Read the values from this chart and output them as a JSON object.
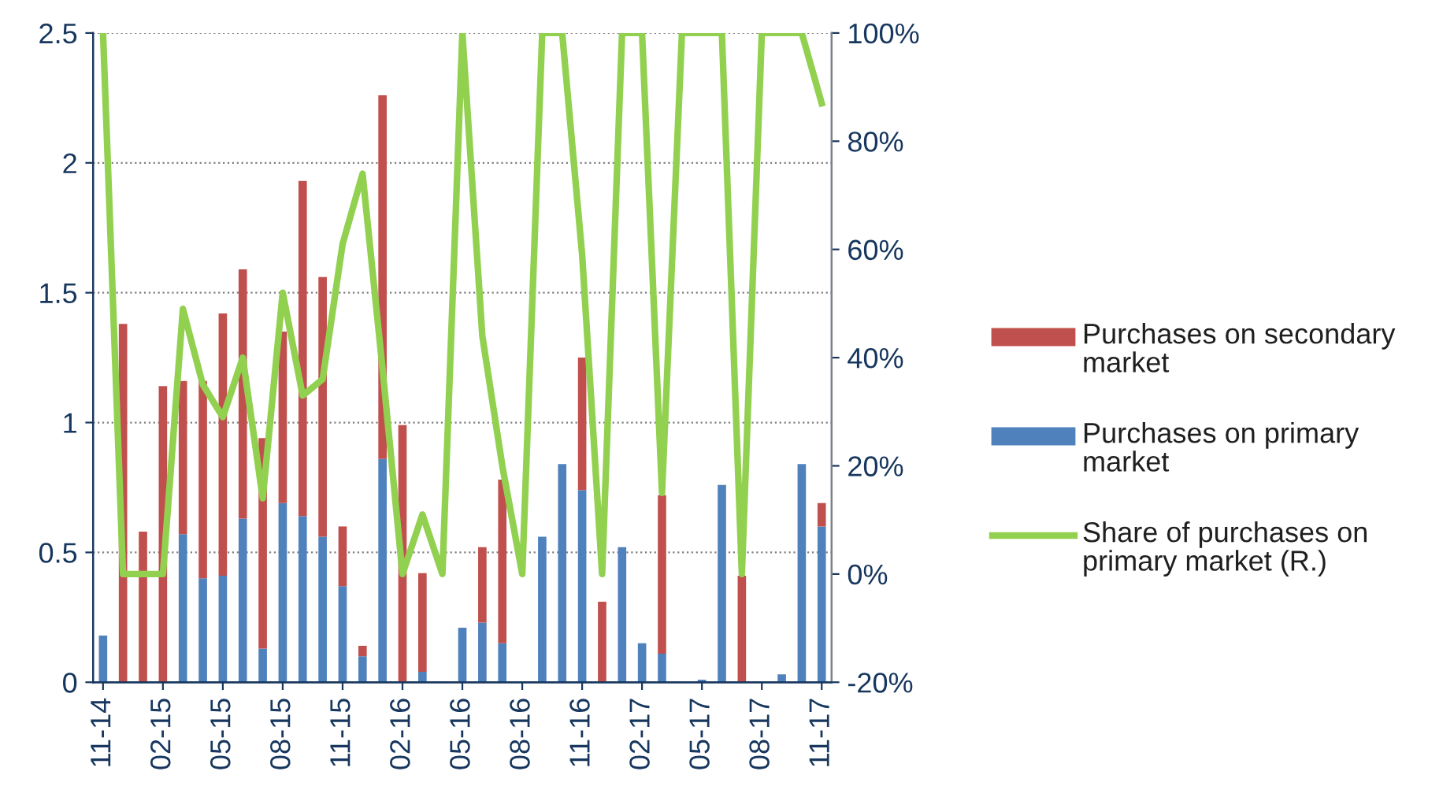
{
  "chart_data": {
    "type": "bar",
    "stacked": true,
    "categories": [
      "11-14",
      null,
      null,
      "02-15",
      null,
      null,
      "05-15",
      null,
      null,
      "08-15",
      null,
      null,
      "11-15",
      null,
      null,
      "02-16",
      null,
      null,
      "05-16",
      null,
      null,
      "08-16",
      null,
      null,
      "11-16",
      null,
      null,
      "02-17",
      null,
      null,
      "05-17",
      null,
      null,
      "08-17",
      null,
      null,
      "11-17"
    ],
    "series": [
      {
        "name": "Purchases on primary market",
        "color": "#4f81bd",
        "values": [
          0.18,
          0,
          0,
          0,
          0.57,
          0.4,
          0.41,
          0.63,
          0.13,
          0.69,
          0.64,
          0.56,
          0.37,
          0.1,
          0.86,
          0,
          0.04,
          0,
          0.21,
          0.23,
          0.15,
          0,
          0.56,
          0.84,
          0.74,
          0,
          0.52,
          0.15,
          0.11,
          0,
          0.01,
          0.76,
          0,
          0,
          0.03,
          0.84,
          0.6
        ]
      },
      {
        "name": "Purchases on secondary market",
        "color": "#c0504d",
        "values": [
          0,
          1.38,
          0.58,
          1.14,
          0.59,
          0.76,
          1.01,
          0.96,
          0.81,
          0.66,
          1.29,
          1.0,
          0.23,
          0.04,
          1.4,
          0.99,
          0.38,
          0,
          0,
          0.29,
          0.63,
          0,
          0,
          0,
          0.51,
          0.31,
          0,
          0,
          0.61,
          0,
          0,
          0,
          0.41,
          0,
          0,
          0,
          0.09
        ]
      },
      {
        "name": "Share of purchases on primary market (R.)",
        "type": "line",
        "axis": "y2",
        "color": "#92d050",
        "values": [
          100,
          0,
          0,
          0,
          49,
          35,
          29,
          40,
          14,
          52,
          33,
          36,
          61,
          74,
          38,
          0,
          11,
          0,
          100,
          44,
          20,
          0,
          100,
          100,
          59,
          0,
          100,
          100,
          15,
          100,
          100,
          100,
          0,
          100,
          100,
          100,
          87
        ]
      }
    ],
    "ylim": [
      0,
      2.5
    ],
    "yticks": [
      0,
      0.5,
      1,
      1.5,
      2,
      2.5
    ],
    "y2lim": [
      -20,
      100
    ],
    "y2ticks": [
      {
        "value": -20,
        "label": "-20%"
      },
      {
        "value": 0,
        "label": "0%"
      },
      {
        "value": 20,
        "label": "20%"
      },
      {
        "value": 40,
        "label": "40%"
      },
      {
        "value": 60,
        "label": "60%"
      },
      {
        "value": 80,
        "label": "80%"
      },
      {
        "value": 100,
        "label": "100%"
      }
    ],
    "grid": "y",
    "legend": "right",
    "line_style": "solid",
    "marker": "none"
  }
}
